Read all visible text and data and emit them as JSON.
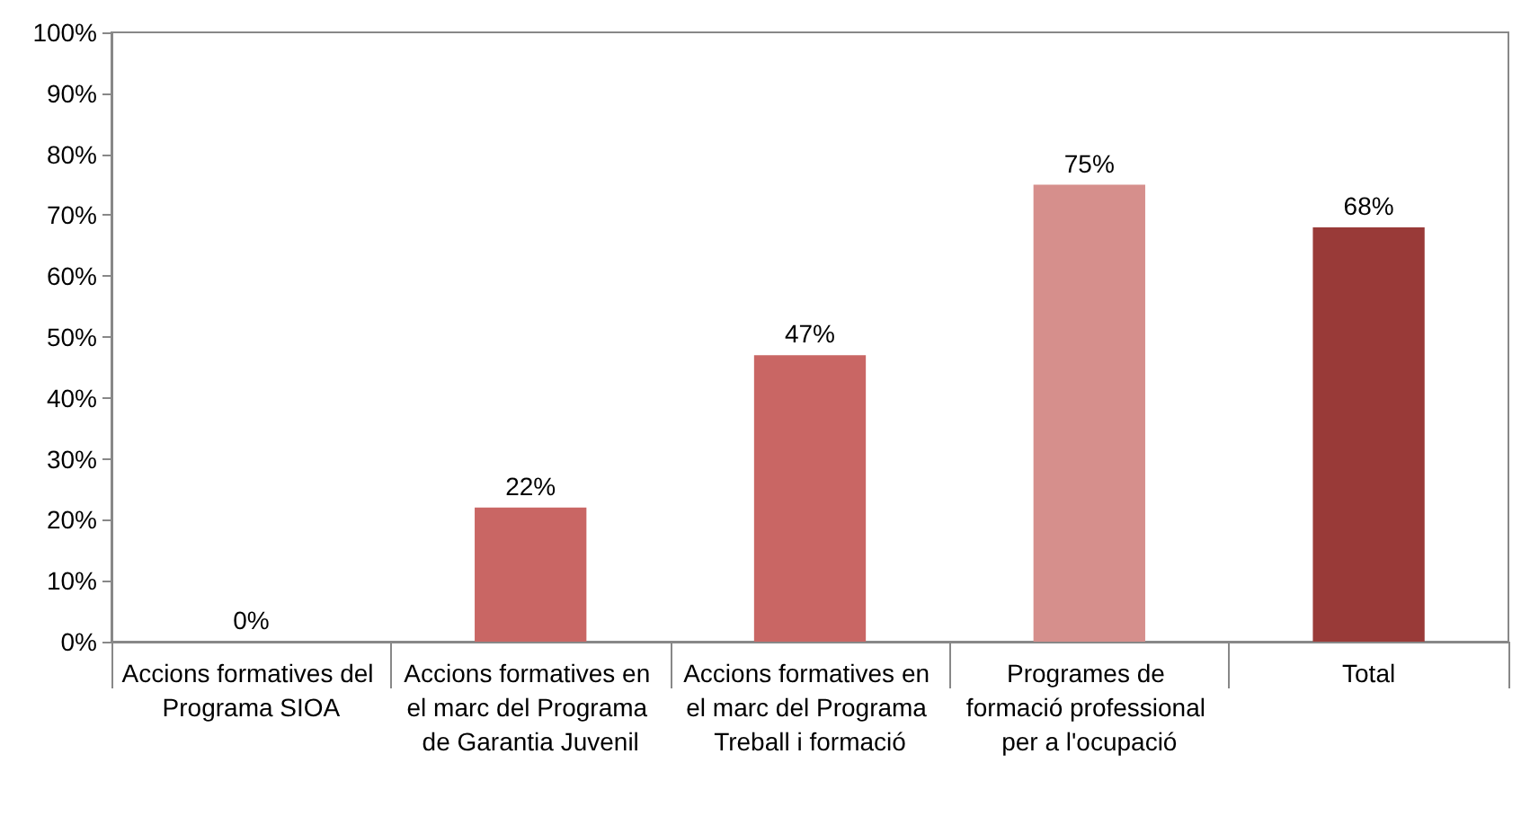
{
  "chart_data": {
    "type": "bar",
    "categories": [
      "Accions formatives del Programa SIOA",
      "Accions formatives en el marc del Programa de Garantia Juvenil",
      "Accions formatives en el marc del Programa Treball i formació",
      "Programes de formació professional per a l'ocupació",
      "Total"
    ],
    "values": [
      0,
      22,
      47,
      75,
      68
    ],
    "colors": [
      "#c96664",
      "#c96664",
      "#c96664",
      "#d68f8c",
      "#993a38"
    ],
    "value_labels": [
      "0%",
      "22%",
      "47%",
      "75%",
      "68%"
    ],
    "ylim": [
      0,
      100
    ],
    "yticks": [
      {
        "value": 0,
        "label": "0%"
      },
      {
        "value": 10,
        "label": "10%"
      },
      {
        "value": 20,
        "label": "20%"
      },
      {
        "value": 30,
        "label": "30%"
      },
      {
        "value": 40,
        "label": "40%"
      },
      {
        "value": 50,
        "label": "50%"
      },
      {
        "value": 60,
        "label": "60%"
      },
      {
        "value": 70,
        "label": "70%"
      },
      {
        "value": 80,
        "label": "80%"
      },
      {
        "value": 90,
        "label": "90%"
      },
      {
        "value": 100,
        "label": "100%"
      }
    ],
    "grid": false
  }
}
